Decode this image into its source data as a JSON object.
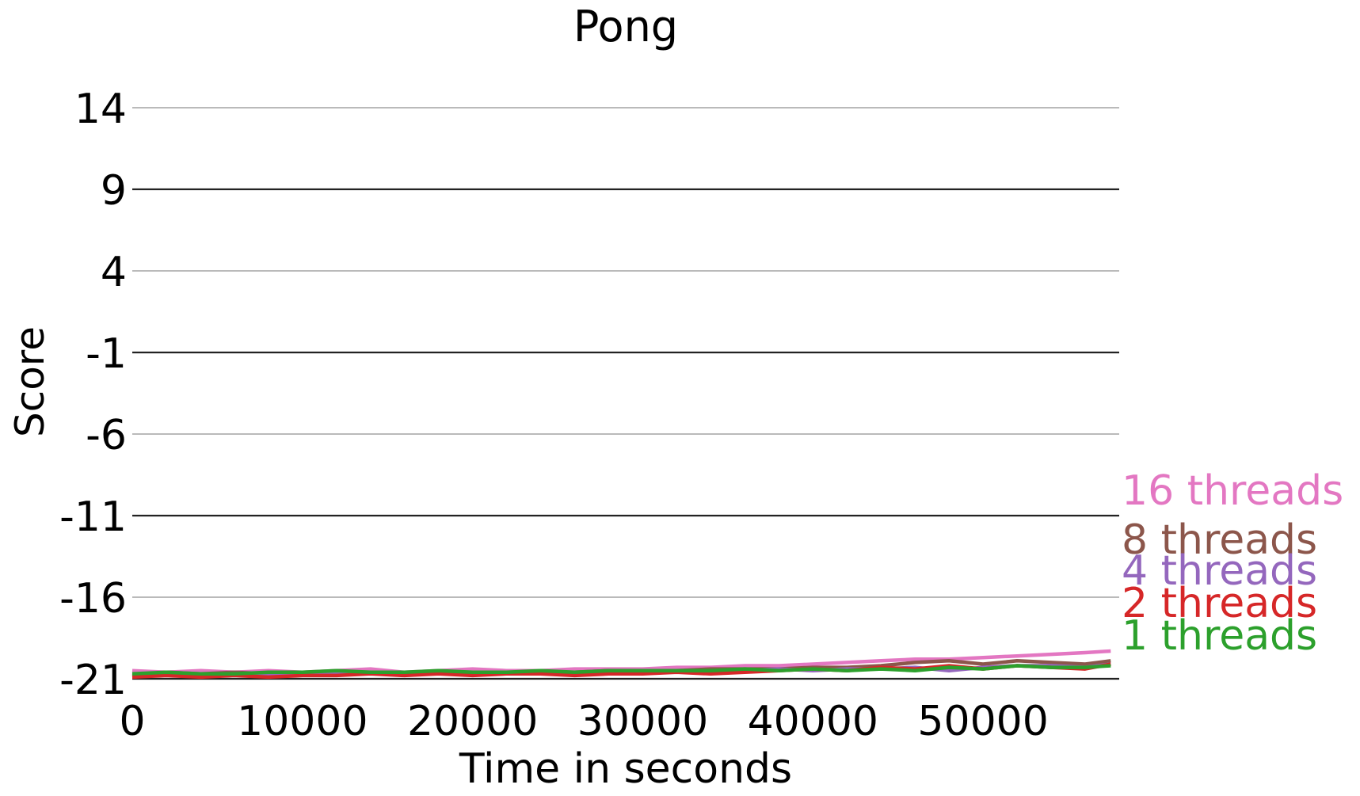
{
  "chart_data": {
    "type": "line",
    "title": "Pong",
    "xlabel": "Time in seconds",
    "ylabel": "Score",
    "xlim": [
      0,
      58000
    ],
    "ylim": [
      -21,
      14
    ],
    "xticks": [
      0,
      10000,
      20000,
      30000,
      40000,
      50000
    ],
    "yticks": [
      -21,
      -16,
      -11,
      -6,
      -1,
      4,
      9,
      14
    ],
    "ytick_labels": [
      "-21",
      "-16",
      "-11",
      "-6",
      "-1",
      "4",
      "9",
      "14"
    ],
    "grid": "horizontal",
    "legend": "right-of-plot",
    "series": [
      {
        "name": "16 threads",
        "color": "#e377c2",
        "x": [
          0,
          2000,
          4000,
          6000,
          8000,
          10000,
          12000,
          14000,
          16000,
          18000,
          20000,
          22000,
          24000,
          26000,
          28000,
          30000,
          32000,
          34000,
          36000,
          38000,
          40000,
          42000,
          44000,
          46000,
          48000,
          50000,
          52000,
          54000,
          56000,
          57500
        ],
        "y": [
          -20.5,
          -20.6,
          -20.5,
          -20.6,
          -20.5,
          -20.6,
          -20.5,
          -20.4,
          -20.6,
          -20.5,
          -20.4,
          -20.5,
          -20.5,
          -20.4,
          -20.4,
          -20.4,
          -20.3,
          -20.3,
          -20.2,
          -20.2,
          -20.1,
          -20.0,
          -19.9,
          -19.8,
          -19.8,
          -19.7,
          -19.6,
          -19.5,
          -19.4,
          -19.3
        ]
      },
      {
        "name": "8 threads",
        "color": "#8c564b",
        "x": [
          0,
          2000,
          4000,
          6000,
          8000,
          10000,
          12000,
          14000,
          16000,
          18000,
          20000,
          22000,
          24000,
          26000,
          28000,
          30000,
          32000,
          34000,
          36000,
          38000,
          40000,
          42000,
          44000,
          46000,
          48000,
          50000,
          52000,
          54000,
          56000,
          57500
        ],
        "y": [
          -20.8,
          -20.6,
          -20.7,
          -20.6,
          -20.7,
          -20.6,
          -20.7,
          -20.6,
          -20.6,
          -20.6,
          -20.7,
          -20.6,
          -20.6,
          -20.6,
          -20.5,
          -20.5,
          -20.5,
          -20.4,
          -20.4,
          -20.4,
          -20.3,
          -20.3,
          -20.2,
          -20.0,
          -19.9,
          -20.1,
          -19.9,
          -20.0,
          -20.1,
          -19.9
        ]
      },
      {
        "name": "4 threads",
        "color": "#9467bd",
        "x": [
          0,
          2000,
          4000,
          6000,
          8000,
          10000,
          12000,
          14000,
          16000,
          18000,
          20000,
          22000,
          24000,
          26000,
          28000,
          30000,
          32000,
          34000,
          36000,
          38000,
          40000,
          42000,
          44000,
          46000,
          48000,
          50000,
          52000,
          54000,
          56000,
          57500
        ],
        "y": [
          -20.9,
          -20.7,
          -20.8,
          -20.7,
          -20.8,
          -20.7,
          -20.6,
          -20.7,
          -20.6,
          -20.7,
          -20.6,
          -20.7,
          -20.6,
          -20.6,
          -20.7,
          -20.6,
          -20.5,
          -20.5,
          -20.5,
          -20.4,
          -20.5,
          -20.4,
          -20.4,
          -20.3,
          -20.5,
          -20.3,
          -20.2,
          -20.2,
          -20.3,
          -20.1
        ]
      },
      {
        "name": "2 threads",
        "color": "#d62728",
        "x": [
          0,
          2000,
          4000,
          6000,
          8000,
          10000,
          12000,
          14000,
          16000,
          18000,
          20000,
          22000,
          24000,
          26000,
          28000,
          30000,
          32000,
          34000,
          36000,
          38000,
          40000,
          42000,
          44000,
          46000,
          48000,
          50000,
          52000,
          54000,
          56000,
          57500
        ],
        "y": [
          -20.9,
          -20.8,
          -20.9,
          -20.8,
          -20.9,
          -20.8,
          -20.8,
          -20.7,
          -20.8,
          -20.7,
          -20.8,
          -20.7,
          -20.7,
          -20.8,
          -20.7,
          -20.7,
          -20.6,
          -20.7,
          -20.6,
          -20.5,
          -20.4,
          -20.5,
          -20.3,
          -20.4,
          -20.2,
          -20.4,
          -20.2,
          -20.3,
          -20.4,
          -20.1
        ]
      },
      {
        "name": "1 threads",
        "color": "#2ca02c",
        "x": [
          0,
          2000,
          4000,
          6000,
          8000,
          10000,
          12000,
          14000,
          16000,
          18000,
          20000,
          22000,
          24000,
          26000,
          28000,
          30000,
          32000,
          34000,
          36000,
          38000,
          40000,
          42000,
          44000,
          46000,
          48000,
          50000,
          52000,
          54000,
          56000,
          57500
        ],
        "y": [
          -20.7,
          -20.6,
          -20.7,
          -20.7,
          -20.6,
          -20.6,
          -20.5,
          -20.6,
          -20.6,
          -20.5,
          -20.6,
          -20.6,
          -20.5,
          -20.6,
          -20.5,
          -20.5,
          -20.5,
          -20.5,
          -20.4,
          -20.5,
          -20.4,
          -20.5,
          -20.4,
          -20.5,
          -20.3,
          -20.4,
          -20.2,
          -20.3,
          -20.3,
          -20.2
        ]
      }
    ]
  }
}
